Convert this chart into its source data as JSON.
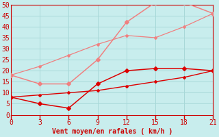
{
  "xlabel": "Vent moyen/en rafales ( km/h )",
  "x": [
    0,
    3,
    6,
    9,
    12,
    15,
    18,
    21
  ],
  "line_pink1": [
    18,
    14,
    14,
    25,
    42,
    51,
    51,
    46
  ],
  "line_pink2": [
    18,
    22,
    27,
    32,
    36,
    35,
    40,
    46
  ],
  "line_red1": [
    8,
    5,
    3,
    14,
    20,
    21,
    21,
    20
  ],
  "line_red2": [
    8,
    9,
    10,
    11,
    13,
    15,
    17,
    20
  ],
  "color_pink": "#f08080",
  "color_red": "#dd0000",
  "background": "#c8eded",
  "grid_color": "#a8d8d8",
  "ylim": [
    0,
    50
  ],
  "xlim": [
    0,
    21
  ],
  "yticks": [
    0,
    5,
    10,
    15,
    20,
    25,
    30,
    35,
    40,
    45,
    50
  ],
  "xticks": [
    0,
    3,
    6,
    9,
    12,
    15,
    18,
    21
  ],
  "tick_color": "#cc0000",
  "label_color": "#cc0000",
  "axis_color": "#cc0000",
  "marker_pink": 3,
  "marker_red": 3
}
